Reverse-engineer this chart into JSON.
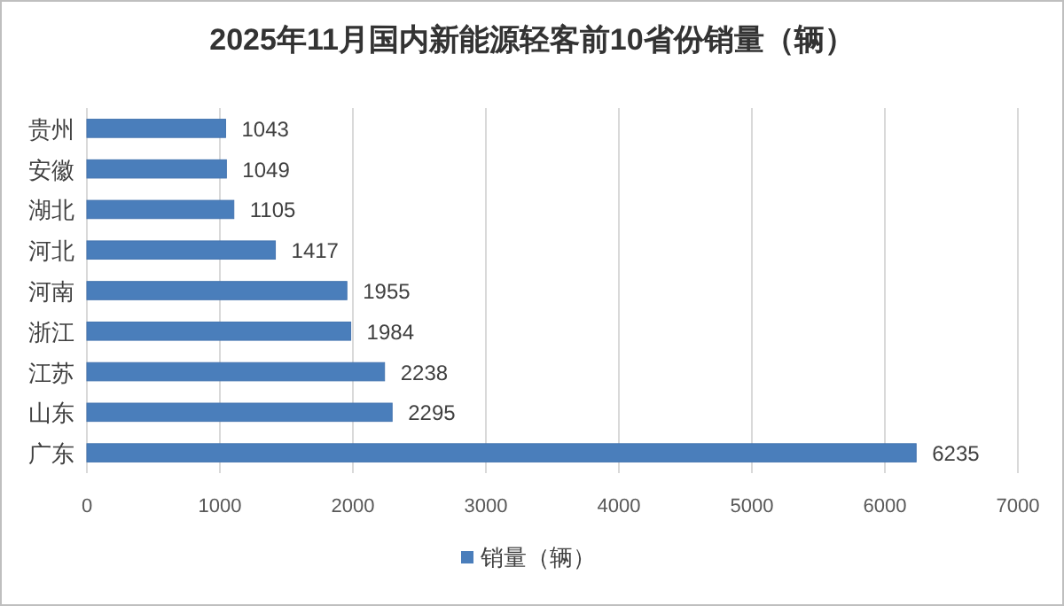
{
  "chart_data": {
    "type": "bar",
    "orientation": "horizontal",
    "title": "2025年11月国内新能源轻客前10省份销量（辆）",
    "categories": [
      "贵州",
      "安徽",
      "湖北",
      "河北",
      "河南",
      "浙江",
      "江苏",
      "山东",
      "广东"
    ],
    "series": [
      {
        "name": "销量（辆）",
        "color": "#4a7ebb",
        "values": [
          1043,
          1049,
          1105,
          1417,
          1955,
          1984,
          2238,
          2295,
          6235
        ]
      }
    ],
    "xlim": [
      0,
      7000
    ],
    "xticks": [
      0,
      1000,
      2000,
      3000,
      4000,
      5000,
      6000,
      7000
    ],
    "grid": "x",
    "legend": "bottom",
    "data_labels": true
  }
}
